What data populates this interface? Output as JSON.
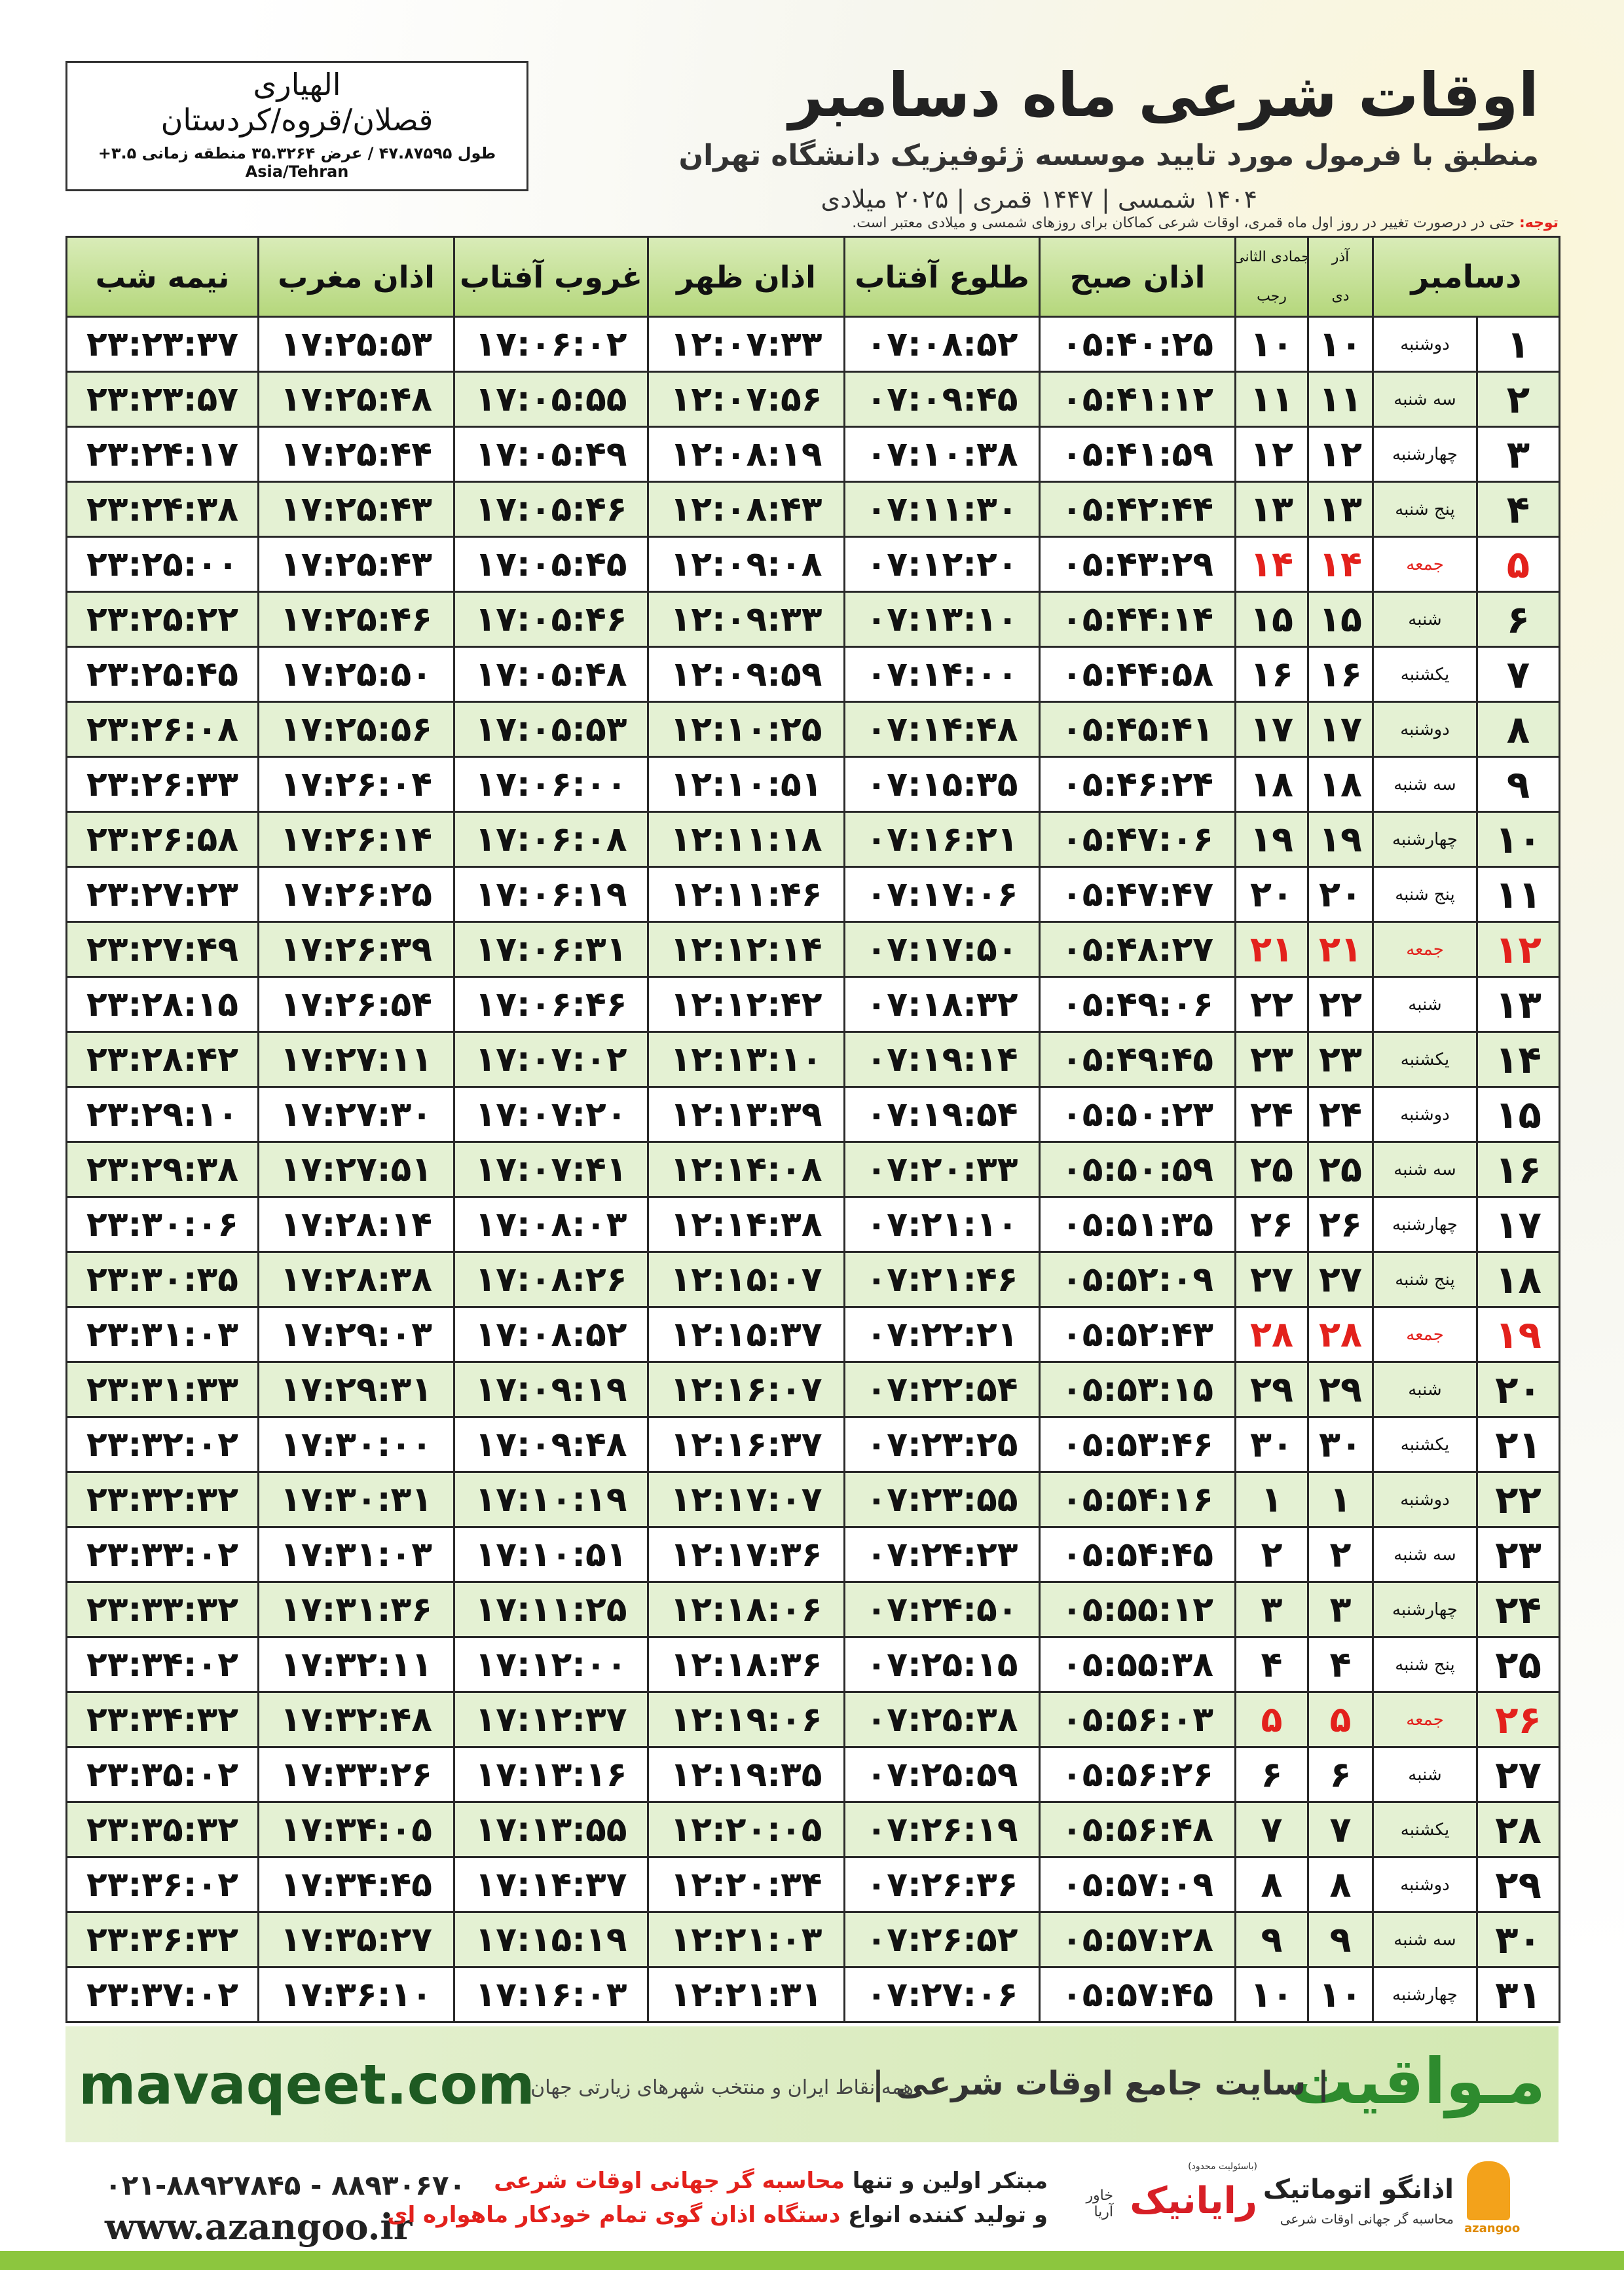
{
  "header": {
    "title": "اوقات شرعی ماه دسامبر",
    "subtitle": "منطبق با فرمول مورد تایید موسسه ژئوفیزیک دانشگاه تهران",
    "date_line": "۱۴۰۴ شمسی | ۱۴۴۷ قمری | ۲۰۲۵ میلادی"
  },
  "location": {
    "name": "الهیاری",
    "region": "قصلان/قروه/کردستان",
    "coordinates": "طول ۴۷.۸۷۵۹۵ / عرض ۳۵.۳۲۶۴ منطقه زمانی ۳.۵+ Asia/Tehran"
  },
  "note": {
    "label": "توجه:",
    "text": "حتی در درصورت تغییر در روز اول ماه قمری، اوقات شرعی کماکان برای روزهای شمسی و میلادی معتبر است."
  },
  "table": {
    "headers": {
      "month": "دسامبر",
      "solar_top": "آذر",
      "solar": "دی",
      "lunar_top": "جمادی الثانی",
      "lunar": "رجب",
      "times": [
        "اذان صبح",
        "طلوع آفتاب",
        "اذان ظهر",
        "غروب آفتاب",
        "اذان مغرب",
        "نیمه شب"
      ]
    },
    "rows": [
      {
        "cells": [
          "۱",
          "دوشنبه",
          "۱۰",
          "۱۰",
          "۰۵:۴۰:۲۵",
          "۰۷:۰۸:۵۲",
          "۱۲:۰۷:۳۳",
          "۱۷:۰۶:۰۲",
          "۱۷:۲۵:۵۳",
          "۲۳:۲۳:۳۷"
        ]
      },
      {
        "cells": [
          "۲",
          "سه شنبه",
          "۱۱",
          "۱۱",
          "۰۵:۴۱:۱۲",
          "۰۷:۰۹:۴۵",
          "۱۲:۰۷:۵۶",
          "۱۷:۰۵:۵۵",
          "۱۷:۲۵:۴۸",
          "۲۳:۲۳:۵۷"
        ]
      },
      {
        "cells": [
          "۳",
          "چهارشنبه",
          "۱۲",
          "۱۲",
          "۰۵:۴۱:۵۹",
          "۰۷:۱۰:۳۸",
          "۱۲:۰۸:۱۹",
          "۱۷:۰۵:۴۹",
          "۱۷:۲۵:۴۴",
          "۲۳:۲۴:۱۷"
        ]
      },
      {
        "cells": [
          "۴",
          "پنج شنبه",
          "۱۳",
          "۱۳",
          "۰۵:۴۲:۴۴",
          "۰۷:۱۱:۳۰",
          "۱۲:۰۸:۴۳",
          "۱۷:۰۵:۴۶",
          "۱۷:۲۵:۴۳",
          "۲۳:۲۴:۳۸"
        ]
      },
      {
        "cells": [
          "۵",
          "جمعه",
          "۱۴",
          "۱۴",
          "۰۵:۴۳:۲۹",
          "۰۷:۱۲:۲۰",
          "۱۲:۰۹:۰۸",
          "۱۷:۰۵:۴۵",
          "۱۷:۲۵:۴۳",
          "۲۳:۲۵:۰۰"
        ],
        "color": "#e3211c"
      },
      {
        "cells": [
          "۶",
          "شنبه",
          "۱۵",
          "۱۵",
          "۰۵:۴۴:۱۴",
          "۰۷:۱۳:۱۰",
          "۱۲:۰۹:۳۳",
          "۱۷:۰۵:۴۶",
          "۱۷:۲۵:۴۶",
          "۲۳:۲۵:۲۲"
        ]
      },
      {
        "cells": [
          "۷",
          "یکشنبه",
          "۱۶",
          "۱۶",
          "۰۵:۴۴:۵۸",
          "۰۷:۱۴:۰۰",
          "۱۲:۰۹:۵۹",
          "۱۷:۰۵:۴۸",
          "۱۷:۲۵:۵۰",
          "۲۳:۲۵:۴۵"
        ]
      },
      {
        "cells": [
          "۸",
          "دوشنبه",
          "۱۷",
          "۱۷",
          "۰۵:۴۵:۴۱",
          "۰۷:۱۴:۴۸",
          "۱۲:۱۰:۲۵",
          "۱۷:۰۵:۵۳",
          "۱۷:۲۵:۵۶",
          "۲۳:۲۶:۰۸"
        ]
      },
      {
        "cells": [
          "۹",
          "سه شنبه",
          "۱۸",
          "۱۸",
          "۰۵:۴۶:۲۴",
          "۰۷:۱۵:۳۵",
          "۱۲:۱۰:۵۱",
          "۱۷:۰۶:۰۰",
          "۱۷:۲۶:۰۴",
          "۲۳:۲۶:۳۳"
        ]
      },
      {
        "cells": [
          "۱۰",
          "چهارشنبه",
          "۱۹",
          "۱۹",
          "۰۵:۴۷:۰۶",
          "۰۷:۱۶:۲۱",
          "۱۲:۱۱:۱۸",
          "۱۷:۰۶:۰۸",
          "۱۷:۲۶:۱۴",
          "۲۳:۲۶:۵۸"
        ]
      },
      {
        "cells": [
          "۱۱",
          "پنج شنبه",
          "۲۰",
          "۲۰",
          "۰۵:۴۷:۴۷",
          "۰۷:۱۷:۰۶",
          "۱۲:۱۱:۴۶",
          "۱۷:۰۶:۱۹",
          "۱۷:۲۶:۲۵",
          "۲۳:۲۷:۲۳"
        ]
      },
      {
        "cells": [
          "۱۲",
          "جمعه",
          "۲۱",
          "۲۱",
          "۰۵:۴۸:۲۷",
          "۰۷:۱۷:۵۰",
          "۱۲:۱۲:۱۴",
          "۱۷:۰۶:۳۱",
          "۱۷:۲۶:۳۹",
          "۲۳:۲۷:۴۹"
        ],
        "color": "#e3211c"
      },
      {
        "cells": [
          "۱۳",
          "شنبه",
          "۲۲",
          "۲۲",
          "۰۵:۴۹:۰۶",
          "۰۷:۱۸:۳۲",
          "۱۲:۱۲:۴۲",
          "۱۷:۰۶:۴۶",
          "۱۷:۲۶:۵۴",
          "۲۳:۲۸:۱۵"
        ]
      },
      {
        "cells": [
          "۱۴",
          "یکشنبه",
          "۲۳",
          "۲۳",
          "۰۵:۴۹:۴۵",
          "۰۷:۱۹:۱۴",
          "۱۲:۱۳:۱۰",
          "۱۷:۰۷:۰۲",
          "۱۷:۲۷:۱۱",
          "۲۳:۲۸:۴۲"
        ]
      },
      {
        "cells": [
          "۱۵",
          "دوشنبه",
          "۲۴",
          "۲۴",
          "۰۵:۵۰:۲۳",
          "۰۷:۱۹:۵۴",
          "۱۲:۱۳:۳۹",
          "۱۷:۰۷:۲۰",
          "۱۷:۲۷:۳۰",
          "۲۳:۲۹:۱۰"
        ]
      },
      {
        "cells": [
          "۱۶",
          "سه شنبه",
          "۲۵",
          "۲۵",
          "۰۵:۵۰:۵۹",
          "۰۷:۲۰:۳۳",
          "۱۲:۱۴:۰۸",
          "۱۷:۰۷:۴۱",
          "۱۷:۲۷:۵۱",
          "۲۳:۲۹:۳۸"
        ]
      },
      {
        "cells": [
          "۱۷",
          "چهارشنبه",
          "۲۶",
          "۲۶",
          "۰۵:۵۱:۳۵",
          "۰۷:۲۱:۱۰",
          "۱۲:۱۴:۳۸",
          "۱۷:۰۸:۰۳",
          "۱۷:۲۸:۱۴",
          "۲۳:۳۰:۰۶"
        ]
      },
      {
        "cells": [
          "۱۸",
          "پنج شنبه",
          "۲۷",
          "۲۷",
          "۰۵:۵۲:۰۹",
          "۰۷:۲۱:۴۶",
          "۱۲:۱۵:۰۷",
          "۱۷:۰۸:۲۶",
          "۱۷:۲۸:۳۸",
          "۲۳:۳۰:۳۵"
        ]
      },
      {
        "cells": [
          "۱۹",
          "جمعه",
          "۲۸",
          "۲۸",
          "۰۵:۵۲:۴۳",
          "۰۷:۲۲:۲۱",
          "۱۲:۱۵:۳۷",
          "۱۷:۰۸:۵۲",
          "۱۷:۲۹:۰۳",
          "۲۳:۳۱:۰۳"
        ],
        "color": "#e3211c"
      },
      {
        "cells": [
          "۲۰",
          "شنبه",
          "۲۹",
          "۲۹",
          "۰۵:۵۳:۱۵",
          "۰۷:۲۲:۵۴",
          "۱۲:۱۶:۰۷",
          "۱۷:۰۹:۱۹",
          "۱۷:۲۹:۳۱",
          "۲۳:۳۱:۳۳"
        ]
      },
      {
        "cells": [
          "۲۱",
          "یکشنبه",
          "۳۰",
          "۳۰",
          "۰۵:۵۳:۴۶",
          "۰۷:۲۳:۲۵",
          "۱۲:۱۶:۳۷",
          "۱۷:۰۹:۴۸",
          "۱۷:۳۰:۰۰",
          "۲۳:۳۲:۰۲"
        ]
      },
      {
        "cells": [
          "۲۲",
          "دوشنبه",
          "۱",
          "۱",
          "۰۵:۵۴:۱۶",
          "۰۷:۲۳:۵۵",
          "۱۲:۱۷:۰۷",
          "۱۷:۱۰:۱۹",
          "۱۷:۳۰:۳۱",
          "۲۳:۳۲:۳۲"
        ]
      },
      {
        "cells": [
          "۲۳",
          "سه شنبه",
          "۲",
          "۲",
          "۰۵:۵۴:۴۵",
          "۰۷:۲۴:۲۳",
          "۱۲:۱۷:۳۶",
          "۱۷:۱۰:۵۱",
          "۱۷:۳۱:۰۳",
          "۲۳:۳۳:۰۲"
        ]
      },
      {
        "cells": [
          "۲۴",
          "چهارشنبه",
          "۳",
          "۳",
          "۰۵:۵۵:۱۲",
          "۰۷:۲۴:۵۰",
          "۱۲:۱۸:۰۶",
          "۱۷:۱۱:۲۵",
          "۱۷:۳۱:۳۶",
          "۲۳:۳۳:۳۲"
        ]
      },
      {
        "cells": [
          "۲۵",
          "پنج شنبه",
          "۴",
          "۴",
          "۰۵:۵۵:۳۸",
          "۰۷:۲۵:۱۵",
          "۱۲:۱۸:۳۶",
          "۱۷:۱۲:۰۰",
          "۱۷:۳۲:۱۱",
          "۲۳:۳۴:۰۲"
        ]
      },
      {
        "cells": [
          "۲۶",
          "جمعه",
          "۵",
          "۵",
          "۰۵:۵۶:۰۳",
          "۰۷:۲۵:۳۸",
          "۱۲:۱۹:۰۶",
          "۱۷:۱۲:۳۷",
          "۱۷:۳۲:۴۸",
          "۲۳:۳۴:۳۲"
        ],
        "color": "#e3211c"
      },
      {
        "cells": [
          "۲۷",
          "شنبه",
          "۶",
          "۶",
          "۰۵:۵۶:۲۶",
          "۰۷:۲۵:۵۹",
          "۱۲:۱۹:۳۵",
          "۱۷:۱۳:۱۶",
          "۱۷:۳۳:۲۶",
          "۲۳:۳۵:۰۲"
        ]
      },
      {
        "cells": [
          "۲۸",
          "یکشنبه",
          "۷",
          "۷",
          "۰۵:۵۶:۴۸",
          "۰۷:۲۶:۱۹",
          "۱۲:۲۰:۰۵",
          "۱۷:۱۳:۵۵",
          "۱۷:۳۴:۰۵",
          "۲۳:۳۵:۳۲"
        ]
      },
      {
        "cells": [
          "۲۹",
          "دوشنبه",
          "۸",
          "۸",
          "۰۵:۵۷:۰۹",
          "۰۷:۲۶:۳۶",
          "۱۲:۲۰:۳۴",
          "۱۷:۱۴:۳۷",
          "۱۷:۳۴:۴۵",
          "۲۳:۳۶:۰۲"
        ]
      },
      {
        "cells": [
          "۳۰",
          "سه شنبه",
          "۹",
          "۹",
          "۰۵:۵۷:۲۸",
          "۰۷:۲۶:۵۲",
          "۱۲:۲۱:۰۳",
          "۱۷:۱۵:۱۹",
          "۱۷:۳۵:۲۷",
          "۲۳:۳۶:۳۲"
        ]
      },
      {
        "cells": [
          "۳۱",
          "چهارشنبه",
          "۱۰",
          "۱۰",
          "۰۵:۵۷:۴۵",
          "۰۷:۲۷:۰۶",
          "۱۲:۲۱:۳۱",
          "۱۷:۱۶:۰۳",
          "۱۷:۳۶:۱۰",
          "۲۳:۳۷:۰۲"
        ]
      }
    ]
  },
  "banner": {
    "website": "mavaqeet.com",
    "brand": "مـواقیت",
    "tagline": "سایت جامع اوقات شرعی",
    "coverage": "همه نقاط ایران و منتخب شهرهای زیارتی جهان"
  },
  "contact": {
    "phones": "۰۲۱-۸۸۹۲۷۸۴۵ - ۸۸۹۳۰۶۷۰",
    "url": "www.azangoo.ir",
    "line1": [
      "مبتکر اولین و تنها",
      "محاسبه گر جهانی اوقات شرعی"
    ],
    "line2": [
      "و تولید کننده انواع",
      "دستگاه اذان گوی تمام خودکار ماهواره ای"
    ],
    "logo_raianik": "رایانیک",
    "logo_raianik_sub": "خاور آریا",
    "logo_raianik_note": "(باسئولیت محدود)",
    "logo_azangoo": "اذانگو اتوماتیک",
    "logo_azangoo_sub": "محاسبه گر جهانی اوقات شرعی",
    "logo_azangoo_latin": "azangoo"
  }
}
